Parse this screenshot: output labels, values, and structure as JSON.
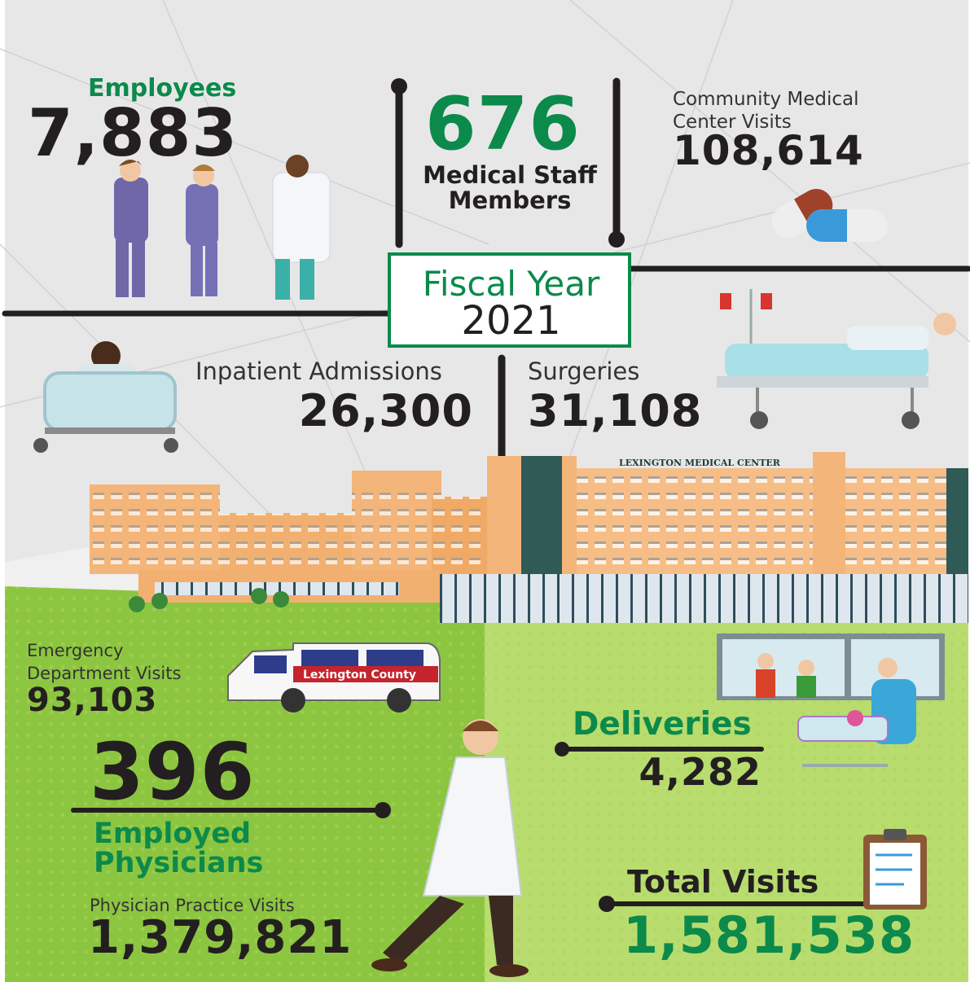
{
  "employees": {
    "label": "Employees",
    "value": "7,883"
  },
  "medical_staff": {
    "value": "676",
    "label_lines": [
      "Medical Staff",
      "Members"
    ]
  },
  "community_visits": {
    "label_lines": [
      "Community Medical",
      "Center Visits"
    ],
    "value": "108,614"
  },
  "fiscal_year": {
    "label": "Fiscal Year",
    "year": "2021"
  },
  "inpatient_admissions": {
    "label": "Inpatient Admissions",
    "value": "26,300"
  },
  "surgeries": {
    "label": "Surgeries",
    "value": "31,108"
  },
  "building_sign": "LEXINGTON MEDICAL CENTER",
  "ambulance_text": "Lexington County",
  "emergency_visits": {
    "label_lines": [
      "Emergency",
      "Department Visits"
    ],
    "value": "93,103"
  },
  "physicians": {
    "value": "396",
    "label_lines": [
      "Employed",
      "Physicians"
    ]
  },
  "practice_visits": {
    "label": "Physician Practice Visits",
    "value": "1,379,821"
  },
  "deliveries": {
    "label": "Deliveries",
    "value": "4,282"
  },
  "total_visits": {
    "label": "Total Visits",
    "value": "1,581,538"
  }
}
